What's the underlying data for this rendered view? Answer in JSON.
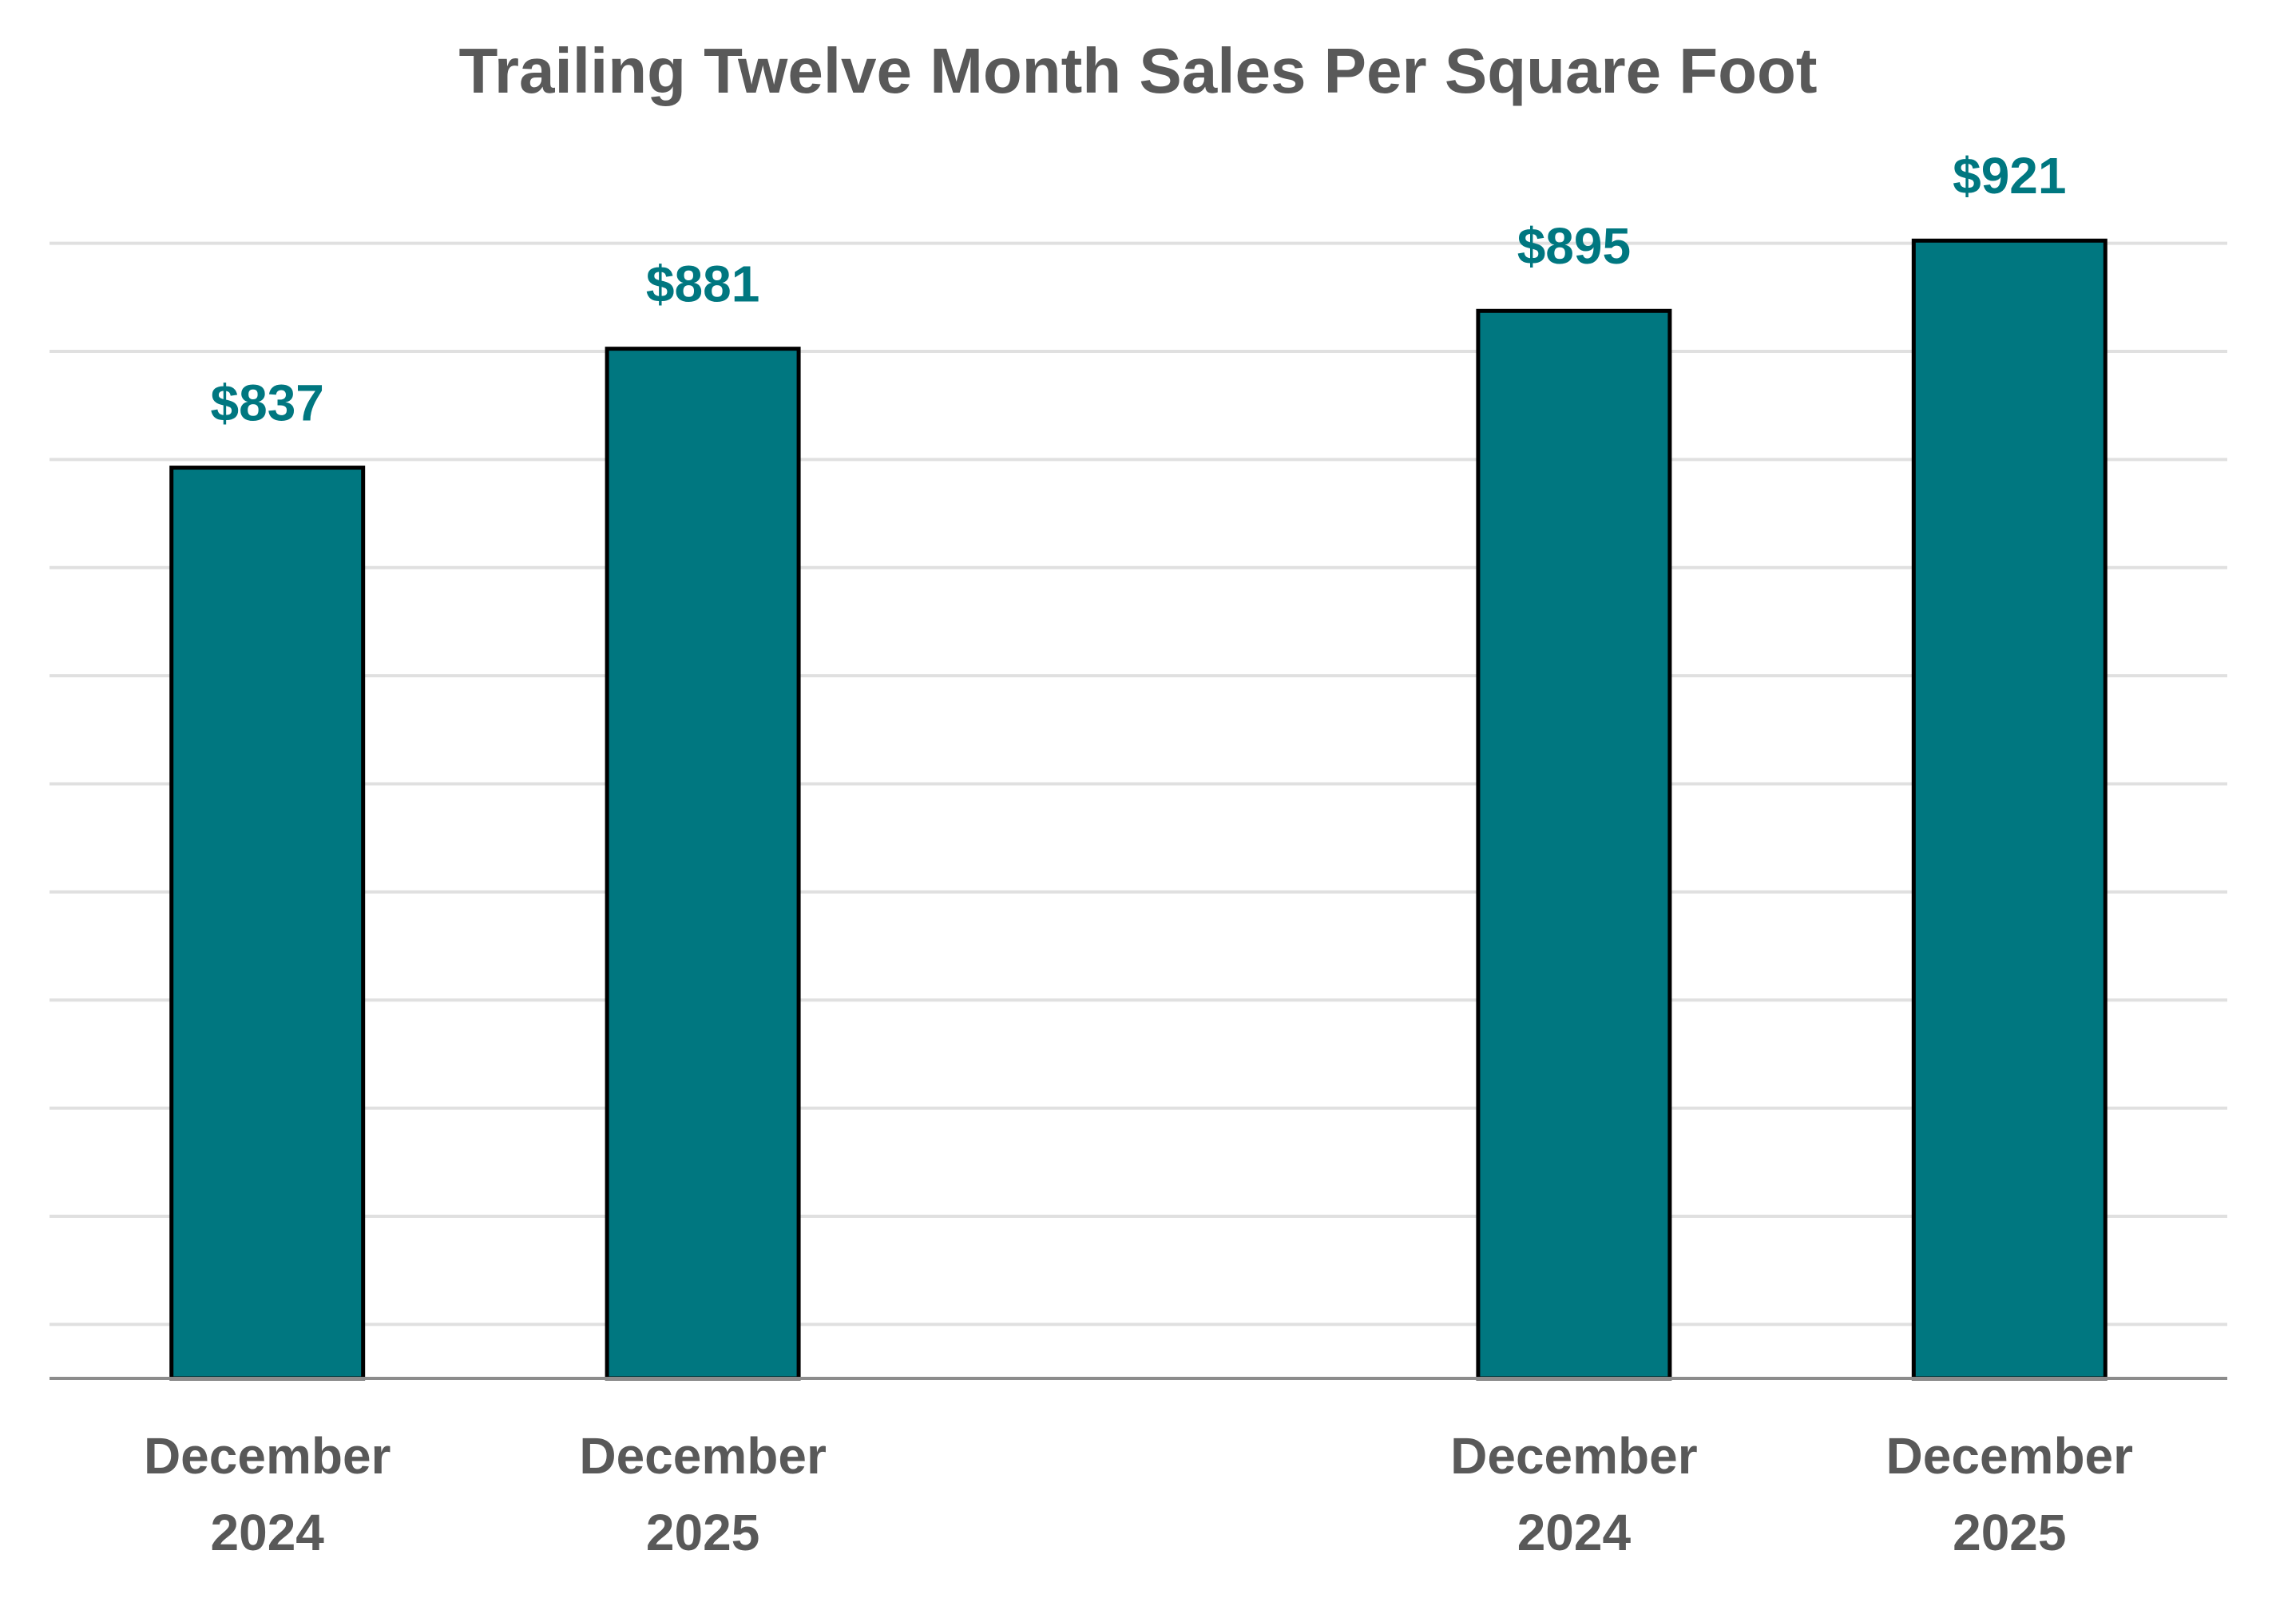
{
  "chart_data": {
    "type": "bar",
    "title": "Trailing Twelve Month Sales Per Square Foot",
    "categories": [
      "December 2024",
      "December 2025",
      null,
      "December 2024",
      "December 2025"
    ],
    "values": [
      837,
      881,
      null,
      895,
      921
    ],
    "value_labels": [
      "$837",
      "$881",
      null,
      "$895",
      "$921"
    ],
    "color": "#007780",
    "ylim": [
      500,
      940
    ],
    "yticks": [
      520,
      560,
      600,
      640,
      680,
      720,
      760,
      800,
      840,
      880,
      920
    ],
    "grid": true
  }
}
